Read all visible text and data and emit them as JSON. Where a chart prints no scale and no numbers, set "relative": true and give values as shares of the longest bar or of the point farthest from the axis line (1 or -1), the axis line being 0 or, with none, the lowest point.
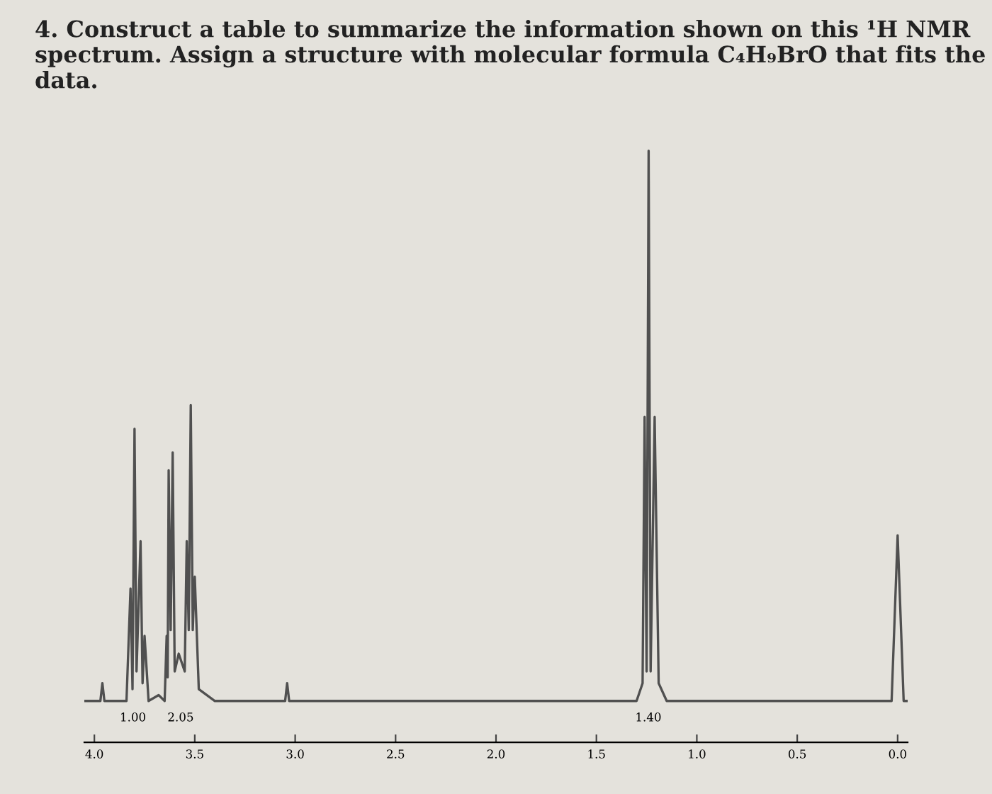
{
  "chart_data": {
    "type": "line",
    "title": "4. Construct a table to summarize the information shown on this ¹H NMR spectrum. Assign a structure with molecular formula C₄H₉BrO that fits the data.",
    "relative": true,
    "series": [
      {
        "color": "#505050",
        "x": [
          4.05,
          3.97,
          3.96,
          3.95,
          3.84,
          3.82,
          3.81,
          3.8,
          3.79,
          3.77,
          3.76,
          3.75,
          3.73,
          3.68,
          3.65,
          3.64,
          3.635,
          3.63,
          3.62,
          3.61,
          3.6,
          3.58,
          3.55,
          3.54,
          3.53,
          3.52,
          3.51,
          3.5,
          3.48,
          3.4,
          3.05,
          3.04,
          3.03,
          1.3,
          1.27,
          1.26,
          1.25,
          1.24,
          1.23,
          1.21,
          1.19,
          1.15,
          0.03,
          0.0,
          -0.03,
          -0.05
        ],
        "values": [
          0.07,
          0.07,
          0.1,
          0.07,
          0.07,
          0.26,
          0.09,
          0.53,
          0.12,
          0.34,
          0.1,
          0.18,
          0.07,
          0.08,
          0.07,
          0.18,
          0.11,
          0.46,
          0.19,
          0.49,
          0.12,
          0.15,
          0.12,
          0.34,
          0.19,
          0.57,
          0.19,
          0.28,
          0.09,
          0.07,
          0.07,
          0.1,
          0.07,
          0.07,
          0.1,
          0.55,
          0.12,
          1.0,
          0.12,
          0.55,
          0.1,
          0.07,
          0.07,
          0.35,
          0.07,
          0.07
        ]
      }
    ],
    "xlim": [
      4.05,
      -0.05
    ],
    "xticks": [
      {
        "value": 4,
        "label": "4.0"
      },
      {
        "value": 3.5,
        "label": "3.5"
      },
      {
        "value": 3,
        "label": "3.0"
      },
      {
        "value": 2.5,
        "label": "2.5"
      },
      {
        "value": 2,
        "label": "2.0"
      },
      {
        "value": 1.5,
        "label": "1.5"
      },
      {
        "value": 1,
        "label": "1.0"
      },
      {
        "value": 0.5,
        "label": "0.5"
      },
      {
        "value": 0,
        "label": "0.0"
      }
    ],
    "annotations": [
      "1.00",
      "2.05",
      "1.40"
    ],
    "tick_labels": "x"
  }
}
